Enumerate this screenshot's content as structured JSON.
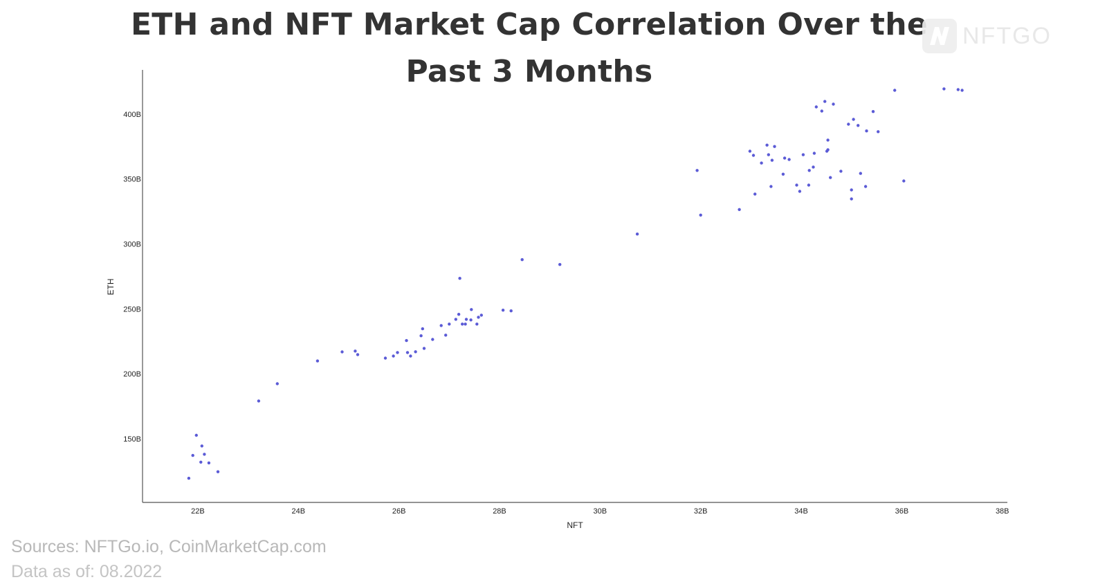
{
  "title": "ETH and NFT Market Cap Correlation Over the Past 3 Months",
  "logo": {
    "text": "NFTGO"
  },
  "footer": {
    "sources": "Sources: NFTGo.io, CoinMarketCap.com",
    "date": "Data as of: 08.2022"
  },
  "colors": {
    "point": "#5b5bd6",
    "axis": "#555555",
    "title": "#333333"
  },
  "chart_data": {
    "type": "scatter",
    "title": "ETH and NFT Market Cap Correlation Over the Past 3 Months",
    "xlabel": "NFT",
    "ylabel": "ETH",
    "xlim": [
      20.9,
      38.1
    ],
    "ylim": [
      101,
      434
    ],
    "grid": false,
    "x_ticks": [
      22,
      24,
      26,
      28,
      30,
      32,
      34,
      36,
      38
    ],
    "x_tick_labels": [
      "22B",
      "24B",
      "26B",
      "28B",
      "30B",
      "32B",
      "34B",
      "36B",
      "38B"
    ],
    "y_ticks": [
      150,
      200,
      250,
      300,
      350,
      400
    ],
    "y_tick_labels": [
      "150B",
      "200B",
      "250B",
      "300B",
      "350B",
      "400B"
    ],
    "units": "billions USD",
    "points": [
      [
        21.82,
        119.6
      ],
      [
        21.9,
        137.2
      ],
      [
        21.97,
        152.7
      ],
      [
        22.06,
        132.0
      ],
      [
        22.08,
        144.5
      ],
      [
        22.13,
        138.1
      ],
      [
        22.22,
        131.4
      ],
      [
        22.4,
        124.6
      ],
      [
        23.21,
        179.1
      ],
      [
        23.58,
        192.4
      ],
      [
        24.38,
        209.9
      ],
      [
        24.87,
        216.9
      ],
      [
        25.13,
        217.5
      ],
      [
        25.18,
        214.8
      ],
      [
        25.73,
        212.1
      ],
      [
        25.89,
        213.7
      ],
      [
        25.97,
        216.4
      ],
      [
        26.15,
        225.6
      ],
      [
        26.17,
        216.4
      ],
      [
        26.23,
        213.7
      ],
      [
        26.33,
        217.0
      ],
      [
        26.44,
        229.3
      ],
      [
        26.47,
        234.7
      ],
      [
        26.5,
        219.6
      ],
      [
        26.67,
        226.5
      ],
      [
        26.84,
        237.2
      ],
      [
        26.93,
        229.8
      ],
      [
        27.0,
        238.3
      ],
      [
        27.13,
        242.0
      ],
      [
        27.19,
        245.8
      ],
      [
        27.21,
        273.5
      ],
      [
        27.26,
        238.3
      ],
      [
        27.32,
        238.3
      ],
      [
        27.34,
        242.0
      ],
      [
        27.43,
        241.5
      ],
      [
        27.44,
        249.5
      ],
      [
        27.55,
        238.3
      ],
      [
        27.58,
        243.6
      ],
      [
        27.64,
        245.2
      ],
      [
        28.07,
        249.0
      ],
      [
        28.23,
        248.5
      ],
      [
        28.45,
        287.9
      ],
      [
        29.2,
        284.2
      ],
      [
        30.74,
        307.6
      ],
      [
        31.93,
        356.6
      ],
      [
        32.0,
        322.2
      ],
      [
        32.77,
        326.5
      ],
      [
        32.98,
        371.4
      ],
      [
        33.05,
        368.2
      ],
      [
        33.08,
        338.4
      ],
      [
        33.21,
        362.3
      ],
      [
        33.32,
        376.1
      ],
      [
        33.35,
        368.7
      ],
      [
        33.4,
        344.2
      ],
      [
        33.42,
        364.4
      ],
      [
        33.47,
        375.0
      ],
      [
        33.64,
        353.7
      ],
      [
        33.67,
        366.1
      ],
      [
        33.76,
        365.0
      ],
      [
        33.91,
        345.3
      ],
      [
        33.97,
        340.5
      ],
      [
        34.04,
        368.7
      ],
      [
        34.15,
        345.3
      ],
      [
        34.16,
        356.6
      ],
      [
        34.24,
        359.2
      ],
      [
        34.26,
        369.8
      ],
      [
        34.3,
        405.5
      ],
      [
        34.41,
        402.3
      ],
      [
        34.47,
        409.7
      ],
      [
        34.51,
        371.4
      ],
      [
        34.53,
        372.5
      ],
      [
        34.53,
        380.0
      ],
      [
        34.58,
        351.1
      ],
      [
        34.64,
        407.6
      ],
      [
        34.79,
        356.0
      ],
      [
        34.94,
        392.2
      ],
      [
        35.0,
        341.6
      ],
      [
        35.0,
        334.7
      ],
      [
        35.04,
        395.9
      ],
      [
        35.13,
        391.2
      ],
      [
        35.18,
        354.3
      ],
      [
        35.28,
        344.2
      ],
      [
        35.3,
        387.0
      ],
      [
        35.43,
        401.9
      ],
      [
        35.53,
        386.4
      ],
      [
        35.86,
        418.3
      ],
      [
        36.04,
        348.5
      ],
      [
        36.84,
        419.4
      ],
      [
        37.12,
        418.8
      ],
      [
        37.2,
        418.3
      ]
    ]
  }
}
